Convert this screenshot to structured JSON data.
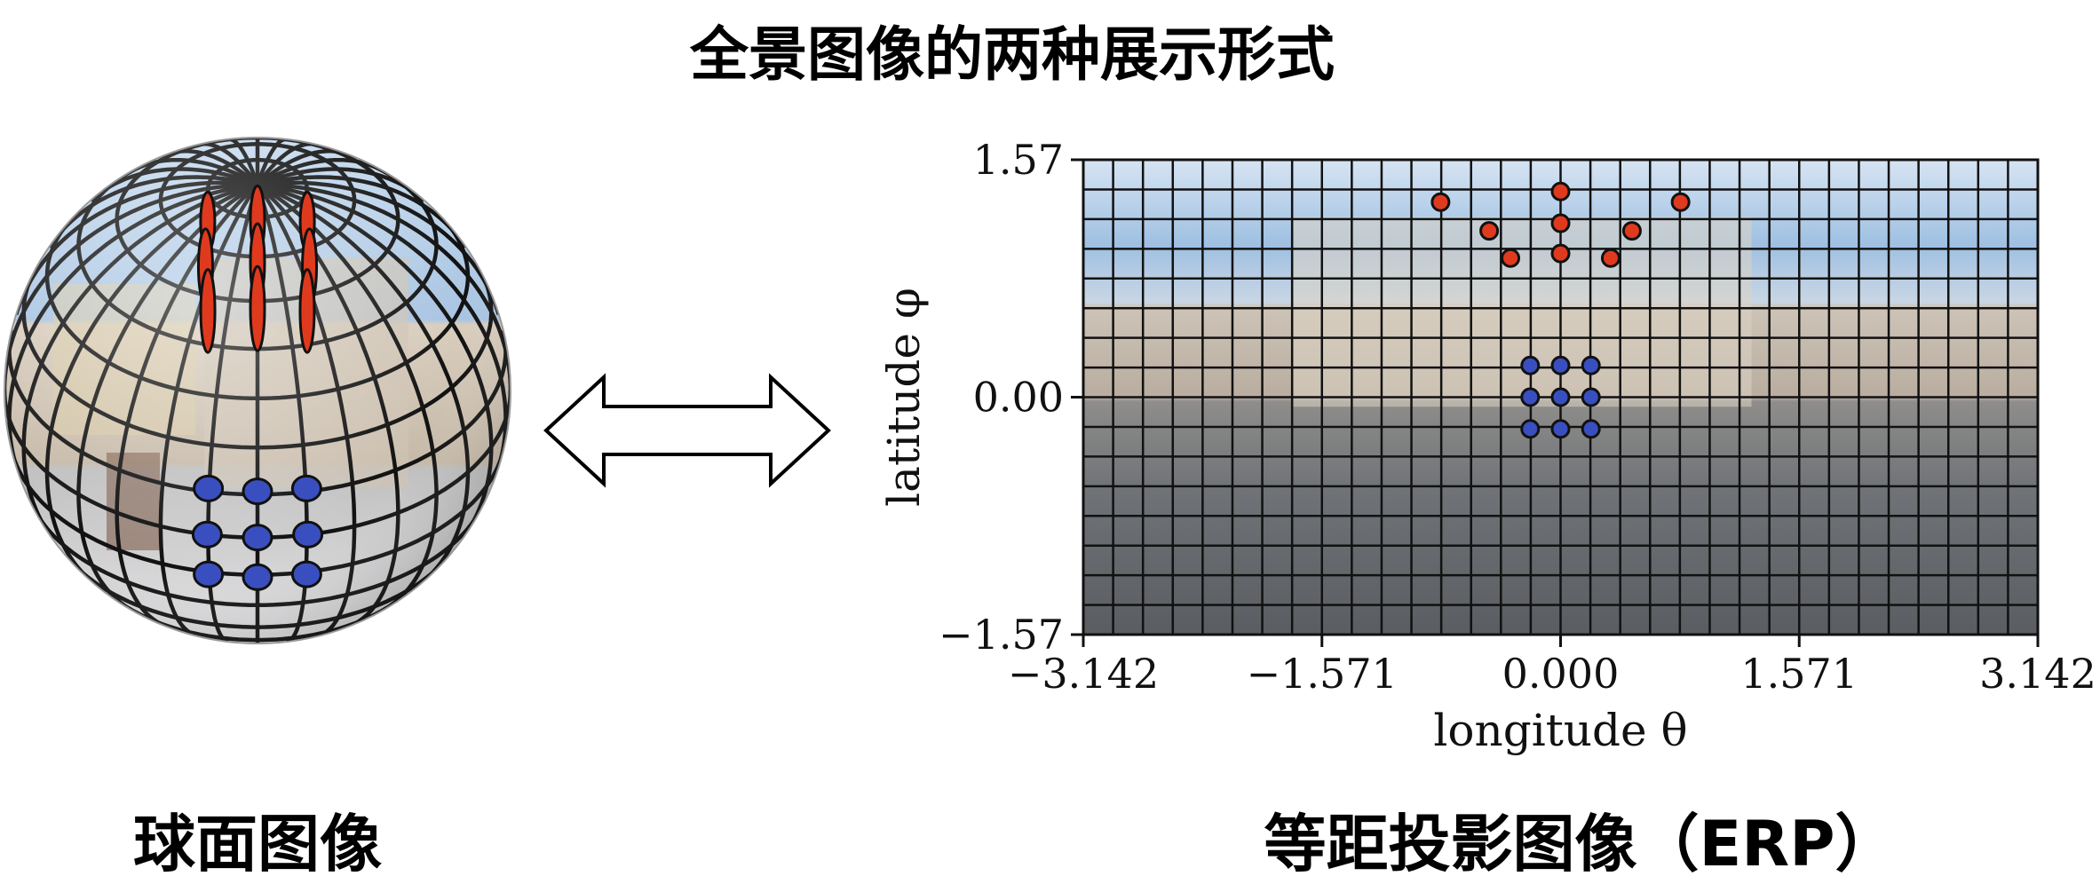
{
  "title": "全景图像的两种展示形式",
  "captions": {
    "sphere": "球面图像",
    "erp": "等距投影图像（ERP）"
  },
  "chart_data": {
    "type": "scatter",
    "xlabel": "longitude θ",
    "ylabel": "latitude φ",
    "xlim": [
      -3.142,
      3.142
    ],
    "ylim": [
      -1.57,
      1.57
    ],
    "x_ticks": [
      "−3.142",
      "−1.571",
      "0.000",
      "1.571",
      "3.142"
    ],
    "x_tick_values": [
      -3.142,
      -1.571,
      0.0,
      1.571,
      3.142
    ],
    "y_ticks": [
      "1.57",
      "0.00",
      "−1.57"
    ],
    "y_tick_values": [
      1.57,
      0.0,
      -1.57
    ],
    "grid": true,
    "grid_columns": 32,
    "grid_rows": 16,
    "series": [
      {
        "color": "#e03a1e",
        "points": [
          [
            -0.79,
            1.29
          ],
          [
            0.0,
            1.36
          ],
          [
            0.79,
            1.29
          ],
          [
            -0.47,
            1.1
          ],
          [
            0.0,
            1.15
          ],
          [
            0.47,
            1.1
          ],
          [
            -0.33,
            0.92
          ],
          [
            0.0,
            0.95
          ],
          [
            0.33,
            0.92
          ]
        ]
      },
      {
        "color": "#3a4fbf",
        "points": [
          [
            -0.2,
            0.21
          ],
          [
            0.0,
            0.21
          ],
          [
            0.2,
            0.21
          ],
          [
            -0.2,
            0.0
          ],
          [
            0.0,
            0.0
          ],
          [
            0.2,
            0.0
          ],
          [
            -0.2,
            -0.21
          ],
          [
            0.0,
            -0.21
          ],
          [
            0.2,
            -0.21
          ]
        ]
      }
    ]
  },
  "colors": {
    "red_points": "#e03a1e",
    "blue_points": "#3a4fbf",
    "sky": "#a9c8e6",
    "building": "#c9bfb2",
    "ground": "#6d7074"
  },
  "icons": {
    "arrow": "double-arrow-icon"
  }
}
